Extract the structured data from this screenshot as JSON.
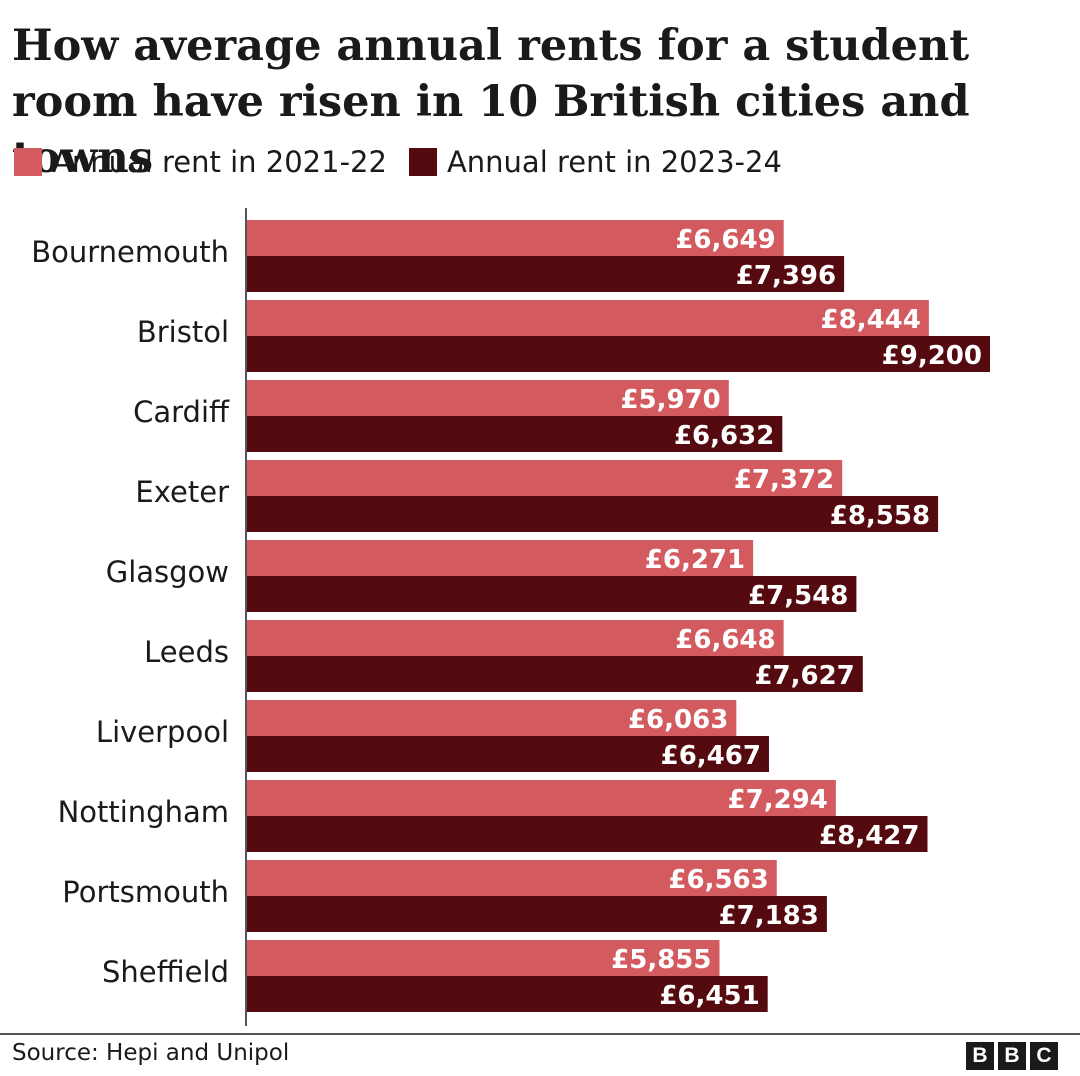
{
  "title": "How average annual rents for a student room have risen in 10 British cities and towns",
  "source": "Source: Hepi and Unipol",
  "logo": [
    "B",
    "B",
    "C"
  ],
  "colors": {
    "series_2021": "#d35a5f",
    "series_2023": "#540a0f",
    "axis": "#555555"
  },
  "chart_data": {
    "type": "bar",
    "orientation": "horizontal",
    "categories": [
      "Bournemouth",
      "Bristol",
      "Cardiff",
      "Exeter",
      "Glasgow",
      "Leeds",
      "Liverpool",
      "Nottingham",
      "Portsmouth",
      "Sheffield"
    ],
    "series": [
      {
        "name": "Annual rent in 2021-22",
        "values": [
          6649,
          8444,
          5970,
          7372,
          6271,
          6648,
          6063,
          7294,
          6563,
          5855
        ],
        "labels": [
          "£6,649",
          "£8,444",
          "£5,970",
          "£7,372",
          "£6,271",
          "£6,648",
          "£6,063",
          "£7,294",
          "£6,563",
          "£5,855"
        ]
      },
      {
        "name": "Annual rent in 2023-24",
        "values": [
          7396,
          9200,
          6632,
          8558,
          7548,
          7627,
          6467,
          8427,
          7183,
          6451
        ],
        "labels": [
          "£7,396",
          "£9,200",
          "£6,632",
          "£8,558",
          "£7,548",
          "£7,627",
          "£6,467",
          "£8,427",
          "£7,183",
          "£6,451"
        ]
      }
    ],
    "xlim": [
      0,
      9200
    ],
    "grid": false,
    "legend_position": "top-left"
  }
}
